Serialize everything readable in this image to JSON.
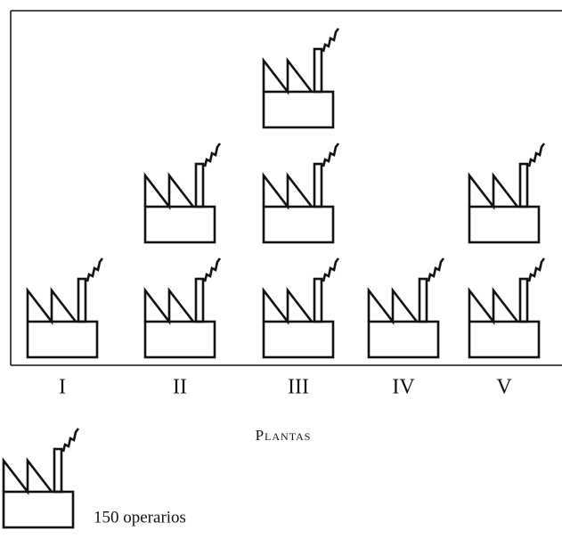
{
  "chart_data": {
    "type": "pictogram",
    "x_label": "Plantas",
    "categories": [
      "I",
      "II",
      "III",
      "IV",
      "V"
    ],
    "values": [
      150,
      300,
      450,
      150,
      300
    ],
    "unit": {
      "value": 150,
      "label": "150 operarios"
    }
  }
}
